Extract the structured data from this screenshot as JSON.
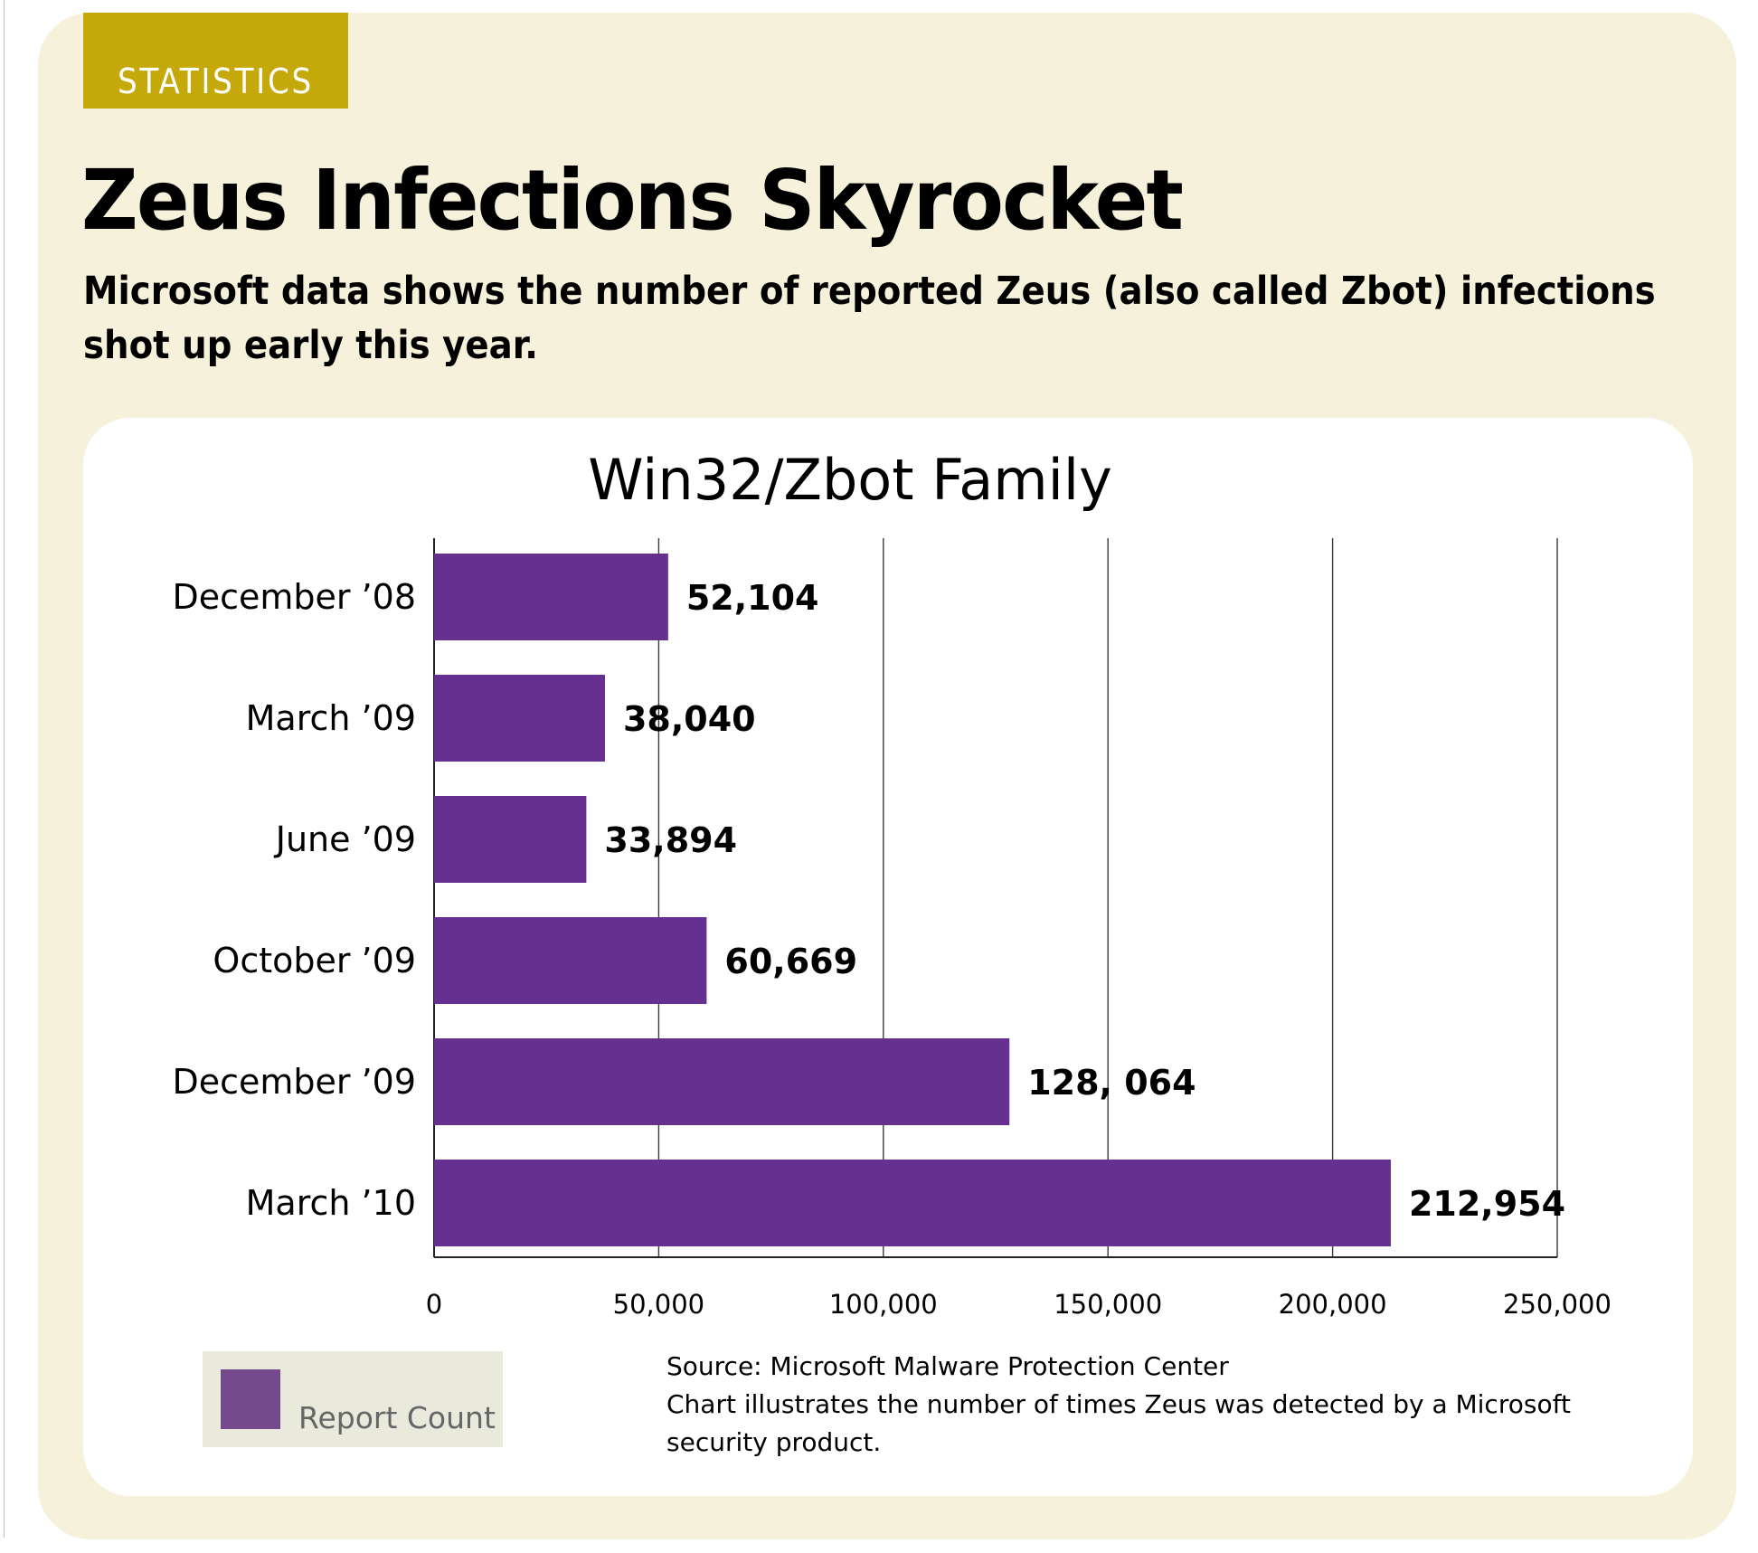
{
  "header": {
    "tag": "STATISTICS",
    "title": "Zeus Infections Skyrocket",
    "subtitle": "Microsoft data shows the number of reported Zeus (also called Zbot) infections shot up early this year."
  },
  "colors": {
    "panel": "#f5f1da",
    "tag": "#c5a90a",
    "bar": "#663090",
    "legend_swatch": "#744a8c",
    "grid": "#3a3a3a"
  },
  "chart_data": {
    "type": "bar",
    "orientation": "horizontal",
    "title": "Win32/Zbot Family",
    "categories": [
      "December ’08",
      "March ’09",
      "June ’09",
      "October ’09",
      "December ’09",
      "March ’10"
    ],
    "values": [
      52104,
      38040,
      33894,
      60669,
      128064,
      212954
    ],
    "value_labels": [
      "52,104",
      "38,040",
      "33,894",
      "60,669",
      "128, 064",
      "212,954"
    ],
    "series": [
      {
        "name": "Report Count",
        "values": [
          52104,
          38040,
          33894,
          60669,
          128064,
          212954
        ]
      }
    ],
    "xlim": [
      0,
      250000
    ],
    "xticks": [
      0,
      50000,
      100000,
      150000,
      200000,
      250000
    ],
    "xtick_labels": [
      "0",
      "50,000",
      "100,000",
      "150,000",
      "200,000",
      "250,000"
    ],
    "grid": true,
    "legend": "bottom-left"
  },
  "legend": {
    "label": "Report Count"
  },
  "source": {
    "line1": "Source: Microsoft Malware Protection Center",
    "line2": "Chart illustrates the number of times Zeus was detected by a Microsoft",
    "line3": "security product."
  }
}
